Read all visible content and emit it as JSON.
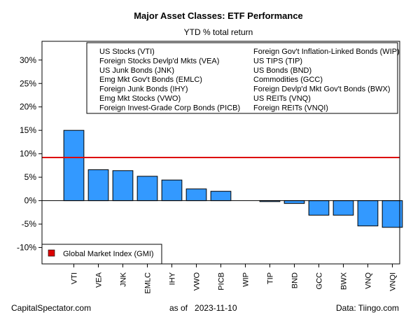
{
  "chart_data": {
    "type": "bar",
    "title": "Major Asset Classes: ETF Performance",
    "subtitle": "YTD % total return",
    "categories": [
      "VTI",
      "VEA",
      "JNK",
      "EMLC",
      "IHY",
      "VWO",
      "PICB",
      "WIP",
      "TIP",
      "BND",
      "GCC",
      "BWX",
      "VNQ",
      "VNQI"
    ],
    "values": [
      15.0,
      6.6,
      6.4,
      5.2,
      4.4,
      2.5,
      2.0,
      0.0,
      -0.2,
      -0.6,
      -3.1,
      -3.1,
      -5.4,
      -5.7
    ],
    "ylim": [
      -13.5,
      34.0
    ],
    "yticks": [
      -10,
      -5,
      0,
      5,
      10,
      15,
      20,
      25,
      30
    ],
    "ytick_labels": [
      "-10%",
      "-5%",
      "0%",
      "5%",
      "10%",
      "15%",
      "20%",
      "25%",
      "30%"
    ],
    "bar_color": "#3399ff",
    "reference_line": {
      "value": 9.2,
      "color": "#dd0000"
    },
    "legend_top": {
      "left": [
        "US Stocks (VTI)",
        "Foreign Stocks Devlp'd Mkts (VEA)",
        "US Junk Bonds (JNK)",
        "Emg Mkt Gov't Bonds (EMLC)",
        "Foreign Junk Bonds (IHY)",
        "Emg Mkt Stocks (VWO)",
        "Foreign Invest-Grade Corp Bonds (PICB)"
      ],
      "right": [
        "Foreign Gov't Inflation-Linked Bonds (WIP)",
        "US TIPS (TIP)",
        "US Bonds (BND)",
        "Commodities (GCC)",
        "Foreign Devlp'd Mkt Gov't Bonds (BWX)",
        "US REITs (VNQ)",
        "Foreign REITs (VNQI)"
      ]
    },
    "legend_bottom": {
      "label": "Global Market Index (GMI)",
      "color": "#dd0000"
    },
    "grid": false
  },
  "footer": {
    "left": "CapitalSpectator.com",
    "center": "as of   2023-11-10",
    "right": "Data: Tiingo.com"
  }
}
